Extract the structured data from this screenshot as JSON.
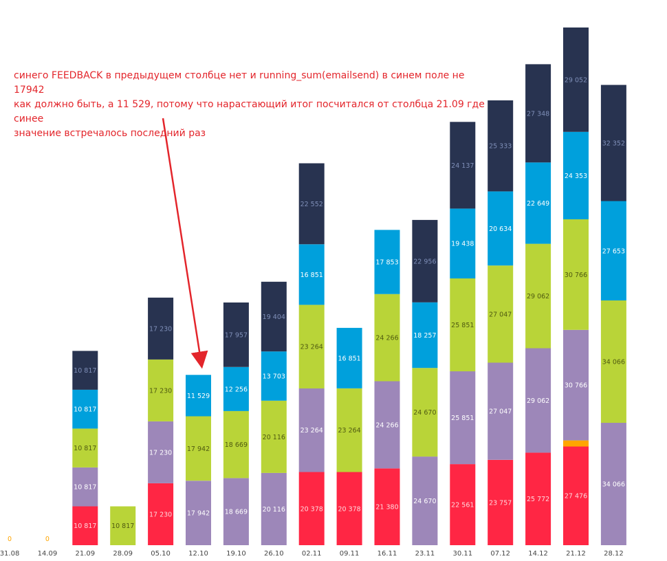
{
  "annotation": {
    "lines": [
      "синего FEEDBACK в предыдущем столбце нет и running_sum(emailsend) в синем поле не 17942",
      "как должно быть, а 11 529, потому что нарастающий итог посчитался от столбца 21.09 где синее",
      "значение встречалось последний раз"
    ]
  },
  "colors": {
    "red": "#ff2644",
    "purple": "#9d87b9",
    "green": "#b9d438",
    "blue": "#00a0dc",
    "navy": "#283350",
    "orange": "#ffa500",
    "arrow": "#e3252b"
  },
  "chart_data": {
    "type": "bar",
    "stacked": true,
    "categories": [
      "31.08",
      "14.09",
      "21.09",
      "28.09",
      "05.10",
      "12.10",
      "19.10",
      "26.10",
      "02.11",
      "09.11",
      "16.11",
      "23.11",
      "30.11",
      "07.12",
      "14.12",
      "21.12",
      "28.12"
    ],
    "bars": [
      {
        "segments": [
          {
            "color": "orange",
            "value": 0,
            "label": "0"
          }
        ]
      },
      {
        "segments": [
          {
            "color": "orange",
            "value": 0,
            "label": "0"
          }
        ]
      },
      {
        "segments": [
          {
            "color": "red",
            "value": 10817,
            "label": "10 817"
          },
          {
            "color": "purple",
            "value": 10817,
            "label": "10 817"
          },
          {
            "color": "green",
            "value": 10817,
            "label": "10 817"
          },
          {
            "color": "blue",
            "value": 10817,
            "label": "10 817"
          },
          {
            "color": "navy",
            "value": 10817,
            "label": "10 817"
          }
        ]
      },
      {
        "segments": [
          {
            "color": "green",
            "value": 10817,
            "label": "10 817"
          }
        ]
      },
      {
        "segments": [
          {
            "color": "red",
            "value": 17230,
            "label": "17 230"
          },
          {
            "color": "purple",
            "value": 17230,
            "label": "17 230"
          },
          {
            "color": "green",
            "value": 17230,
            "label": "17 230"
          },
          {
            "color": "navy",
            "value": 17230,
            "label": "17 230"
          }
        ]
      },
      {
        "segments": [
          {
            "color": "purple",
            "value": 17942,
            "label": "17 942"
          },
          {
            "color": "green",
            "value": 17942,
            "label": "17 942"
          },
          {
            "color": "blue",
            "value": 11529,
            "label": "11 529"
          }
        ]
      },
      {
        "segments": [
          {
            "color": "purple",
            "value": 18669,
            "label": "18 669"
          },
          {
            "color": "green",
            "value": 18669,
            "label": "18 669"
          },
          {
            "color": "blue",
            "value": 12256,
            "label": "12 256"
          },
          {
            "color": "navy",
            "value": 17957,
            "label": "17 957"
          }
        ]
      },
      {
        "segments": [
          {
            "color": "purple",
            "value": 20116,
            "label": "20 116"
          },
          {
            "color": "green",
            "value": 20116,
            "label": "20 116"
          },
          {
            "color": "blue",
            "value": 13703,
            "label": "13 703"
          },
          {
            "color": "navy",
            "value": 19404,
            "label": "19 404"
          }
        ]
      },
      {
        "segments": [
          {
            "color": "red",
            "value": 20378,
            "label": "20 378"
          },
          {
            "color": "purple",
            "value": 23264,
            "label": "23 264"
          },
          {
            "color": "green",
            "value": 23264,
            "label": "23 264"
          },
          {
            "color": "blue",
            "value": 16851,
            "label": "16 851"
          },
          {
            "color": "navy",
            "value": 22552,
            "label": "22 552"
          }
        ]
      },
      {
        "segments": [
          {
            "color": "red",
            "value": 20378,
            "label": "20 378"
          },
          {
            "color": "green",
            "value": 23264,
            "label": "23 264"
          },
          {
            "color": "blue",
            "value": 16851,
            "label": "16 851"
          }
        ]
      },
      {
        "segments": [
          {
            "color": "red",
            "value": 21380,
            "label": "21 380"
          },
          {
            "color": "purple",
            "value": 24266,
            "label": "24 266"
          },
          {
            "color": "green",
            "value": 24266,
            "label": "24 266"
          },
          {
            "color": "blue",
            "value": 17853,
            "label": "17 853"
          }
        ]
      },
      {
        "segments": [
          {
            "color": "purple",
            "value": 24670,
            "label": "24 670"
          },
          {
            "color": "green",
            "value": 24670,
            "label": "24 670"
          },
          {
            "color": "blue",
            "value": 18257,
            "label": "18 257"
          },
          {
            "color": "navy",
            "value": 22956,
            "label": "22 956"
          }
        ]
      },
      {
        "segments": [
          {
            "color": "red",
            "value": 22561,
            "label": "22 561"
          },
          {
            "color": "purple",
            "value": 25851,
            "label": "25 851"
          },
          {
            "color": "green",
            "value": 25851,
            "label": "25 851"
          },
          {
            "color": "blue",
            "value": 19438,
            "label": "19 438"
          },
          {
            "color": "navy",
            "value": 24137,
            "label": "24 137"
          }
        ]
      },
      {
        "segments": [
          {
            "color": "red",
            "value": 23757,
            "label": "23 757"
          },
          {
            "color": "purple",
            "value": 27047,
            "label": "27 047"
          },
          {
            "color": "green",
            "value": 27047,
            "label": "27 047"
          },
          {
            "color": "blue",
            "value": 20634,
            "label": "20 634"
          },
          {
            "color": "navy",
            "value": 25333,
            "label": "25 333"
          }
        ]
      },
      {
        "segments": [
          {
            "color": "red",
            "value": 25772,
            "label": "25 772"
          },
          {
            "color": "purple",
            "value": 29062,
            "label": "29 062"
          },
          {
            "color": "green",
            "value": 29062,
            "label": "29 062"
          },
          {
            "color": "blue",
            "value": 22649,
            "label": "22 649"
          },
          {
            "color": "navy",
            "value": 27348,
            "label": "27 348"
          }
        ]
      },
      {
        "segments": [
          {
            "color": "red",
            "value": 27476,
            "label": "27 476"
          },
          {
            "color": "orange",
            "value": 1700,
            "label": ""
          },
          {
            "color": "purple",
            "value": 30766,
            "label": "30 766"
          },
          {
            "color": "green",
            "value": 30766,
            "label": "30 766"
          },
          {
            "color": "blue",
            "value": 24353,
            "label": "24 353"
          },
          {
            "color": "navy",
            "value": 29052,
            "label": "29 052"
          }
        ]
      },
      {
        "segments": [
          {
            "color": "purple",
            "value": 34066,
            "label": "34 066"
          },
          {
            "color": "green",
            "value": 34066,
            "label": "34 066"
          },
          {
            "color": "blue",
            "value": 27653,
            "label": "27 653"
          },
          {
            "color": "navy",
            "value": 32352,
            "label": "32 352"
          }
        ]
      }
    ]
  }
}
